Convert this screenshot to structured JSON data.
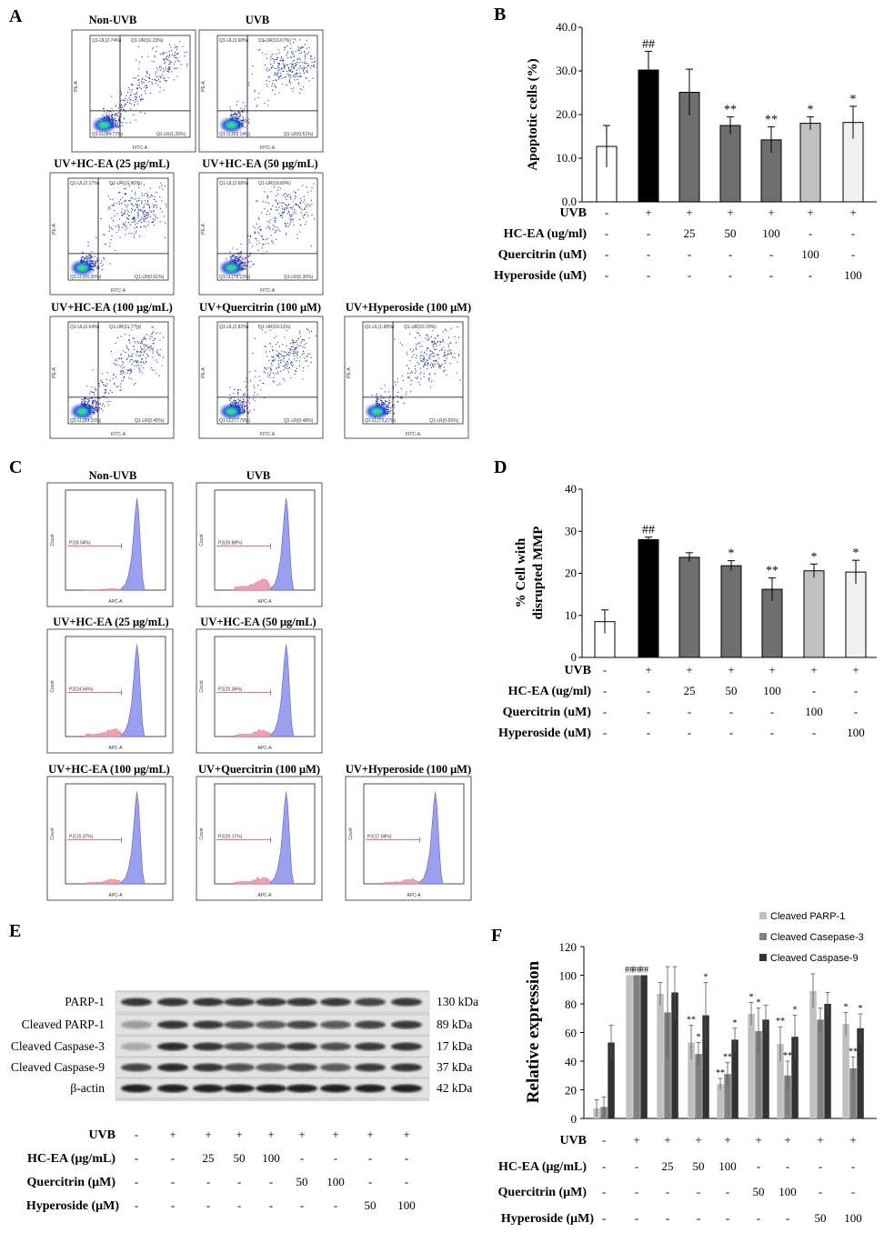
{
  "labels": {
    "A": "A",
    "B": "B",
    "C": "C",
    "D": "D",
    "E": "E",
    "F": "F"
  },
  "panelA": {
    "plots": [
      {
        "title": "Non-UVB",
        "ul": "Q1-UL(2.74%)",
        "ur": "Q1-UR(11.23%)",
        "ll": "Q1-LL(84.77%)",
        "lr": "Q1-LR(1.26%)"
      },
      {
        "title": "UVB",
        "ul": "Q1-UL(3.68%)",
        "ur": "Q1-UR(33.67%)",
        "ll": "Q1-LL(63.14%)",
        "lr": "Q1-LR(0.51%)"
      },
      {
        "title": "UV+HC-EA (25 μg/mL)",
        "ul": "Q1-UL(2.17%)",
        "ur": "Q1-UR(31.02%)",
        "ll": "Q1-LL(66.20%)",
        "lr": "Q1-LR(0.61%)"
      },
      {
        "title": "UV+HC-EA (50 μg/mL)",
        "ul": "Q1-UL(2.68%)",
        "ur": "Q1-UR(18.89%)",
        "ll": "Q1-LL(78.13%)",
        "lr": "Q1-LR(0.30%)"
      },
      {
        "title": "UV+HC-EA (100 μg/mL)",
        "ul": "Q1-UL(2.64%)",
        "ur": "Q1-UR(11.77%)",
        "ll": "Q1-LL(85.10%)",
        "lr": "Q1-LR(0.45%)"
      },
      {
        "title": "UV+Quercitrin (100 μM)",
        "ul": "Q1-UL(2.82%)",
        "ur": "Q1-UR(19.11%)",
        "ll": "Q1-LL(77.79%)",
        "lr": "Q1-LR(0.48%)"
      },
      {
        "title": "UV+Hyperoside (100 μM)",
        "ul": "Q1-UL(1.88%)",
        "ur": "Q1-UR(22.29%)",
        "ll": "Q1-LL(73.27%)",
        "lr": "Q1-LR(0.65%)"
      }
    ],
    "xaxis": "FITC-A",
    "yaxis": "PE-A"
  },
  "panelC": {
    "plots": [
      {
        "title": "Non-UVB",
        "gate": "P2(8.04%)"
      },
      {
        "title": "UVB",
        "gate": "P2(26.88%)"
      },
      {
        "title": "UV+HC-EA (25 μg/mL)",
        "gate": "P2(24.56%)"
      },
      {
        "title": "UV+HC-EA (50 μg/mL)",
        "gate": "P2(20.36%)"
      },
      {
        "title": "UV+HC-EA (100 μg/mL)",
        "gate": "P2(15.37%)"
      },
      {
        "title": "UV+Quercitrin (100 μM)",
        "gate": "P2(20.17%)"
      },
      {
        "title": "UV+Hyperoside (100 μM)",
        "gate": "P2(17.08%)"
      }
    ],
    "xaxis": "APC-A",
    "yaxis": "Count"
  },
  "chart_data": [
    {
      "id": "B",
      "type": "bar",
      "ylabel": "Apoptotic cells (%)",
      "ylim": [
        0,
        40
      ],
      "yticks": [
        "0.0",
        "10.0",
        "20.0",
        "30.0",
        "40.0"
      ],
      "values": [
        12.7,
        30.2,
        25.1,
        17.5,
        14.2,
        18.0,
        18.2
      ],
      "errors": [
        4.8,
        4.3,
        5.3,
        2.0,
        3.0,
        1.5,
        3.7
      ],
      "sig": [
        "",
        "##",
        "",
        "**",
        "**",
        "*",
        "*"
      ],
      "colors": [
        "#ffffff",
        "#000000",
        "#6e6e6e",
        "#6e6e6e",
        "#6e6e6e",
        "#c0c0c0",
        "#f0f0f0"
      ],
      "table": [
        {
          "label": "UVB",
          "values": [
            "-",
            "+",
            "+",
            "+",
            "+",
            "+",
            "+"
          ]
        },
        {
          "label": "HC-EA (ug/ml)",
          "values": [
            "-",
            "-",
            "25",
            "50",
            "100",
            "-",
            "-"
          ]
        },
        {
          "label": "Quercitrin (uM)",
          "values": [
            "-",
            "-",
            "-",
            "-",
            "-",
            "100",
            "-"
          ]
        },
        {
          "label": "Hyperoside (uM)",
          "values": [
            "-",
            "-",
            "-",
            "-",
            "-",
            "-",
            "100"
          ]
        }
      ]
    },
    {
      "id": "D",
      "type": "bar",
      "ylabel1": "% Cell with",
      "ylabel2": "disrupted MMP",
      "ylim": [
        0,
        40
      ],
      "yticks": [
        "0",
        "10",
        "20",
        "30",
        "40"
      ],
      "values": [
        8.5,
        28.0,
        23.8,
        21.8,
        16.2,
        20.6,
        20.3
      ],
      "errors": [
        2.8,
        0.6,
        1.1,
        1.2,
        2.7,
        1.6,
        2.8
      ],
      "sig": [
        "",
        "##",
        "",
        "*",
        "**",
        "*",
        "*"
      ],
      "colors": [
        "#ffffff",
        "#000000",
        "#6e6e6e",
        "#6e6e6e",
        "#6e6e6e",
        "#c0c0c0",
        "#f0f0f0"
      ],
      "table": [
        {
          "label": "UVB",
          "values": [
            "-",
            "+",
            "+",
            "+",
            "+",
            "+",
            "+"
          ]
        },
        {
          "label": "HC-EA (ug/ml)",
          "values": [
            "-",
            "-",
            "25",
            "50",
            "100",
            "-",
            "-"
          ]
        },
        {
          "label": "Quercitrin (uM)",
          "values": [
            "-",
            "-",
            "-",
            "-",
            "-",
            "100",
            "-"
          ]
        },
        {
          "label": "Hyperoside (uM)",
          "values": [
            "-",
            "-",
            "-",
            "-",
            "-",
            "-",
            "100"
          ]
        }
      ]
    },
    {
      "id": "F",
      "type": "bar",
      "ylabel": "Relative expression",
      "ylim": [
        0,
        120
      ],
      "yticks": [
        "0",
        "20",
        "40",
        "60",
        "80",
        "100",
        "120"
      ],
      "legend": [
        "Cleaved PARP-1",
        "Cleaved Casepase-3",
        "Cleaved Caspase-9"
      ],
      "colors": [
        "#c0c0c0",
        "#808080",
        "#333333"
      ],
      "series": [
        {
          "name": "Cleaved PARP-1",
          "values": [
            7,
            100,
            87,
            53,
            24,
            73,
            52,
            89,
            66
          ],
          "errors": [
            6,
            0,
            8,
            12,
            4,
            8,
            12,
            12,
            8
          ],
          "sig": [
            "",
            "##",
            "",
            "**",
            "**",
            "*",
            "**",
            "",
            "*"
          ]
        },
        {
          "name": "Cleaved Casepase-3",
          "values": [
            8,
            100,
            74,
            45,
            31,
            61,
            30,
            69,
            35
          ],
          "errors": [
            7,
            0,
            32,
            8,
            8,
            16,
            10,
            8,
            8
          ],
          "sig": [
            "",
            "##",
            "",
            "*",
            "**",
            "*",
            "**",
            "",
            "**"
          ]
        },
        {
          "name": "Cleaved Caspase-9",
          "values": [
            53,
            100,
            88,
            72,
            55,
            69,
            57,
            80,
            63
          ],
          "errors": [
            12,
            0,
            18,
            23,
            8,
            10,
            15,
            8,
            10
          ],
          "sig": [
            "",
            "##",
            "",
            "*",
            "*",
            "",
            "*",
            "",
            "*"
          ]
        }
      ],
      "table": [
        {
          "label": "UVB",
          "values": [
            "-",
            "+",
            "+",
            "+",
            "+",
            "+",
            "+",
            "+",
            "+"
          ]
        },
        {
          "label": "HC-EA (μg/mL)",
          "values": [
            "-",
            "-",
            "25",
            "50",
            "100",
            "-",
            "-",
            "-",
            "-"
          ]
        },
        {
          "label": "Quercitrin (μM)",
          "values": [
            "-",
            "-",
            "-",
            "-",
            "-",
            "50",
            "100",
            "-",
            "-"
          ]
        },
        {
          "label": "Hyperoside (μM)",
          "values": [
            "-",
            "-",
            "-",
            "-",
            "-",
            "-",
            "-",
            "50",
            "100"
          ]
        }
      ]
    }
  ],
  "panelE": {
    "bands": [
      {
        "label": "PARP-1",
        "kda": "130 kDa"
      },
      {
        "label": "Cleaved PARP-1",
        "kda": "89 kDa"
      },
      {
        "label": "Cleaved Caspase-3",
        "kda": "17 kDa"
      },
      {
        "label": "Cleaved Caspase-9",
        "kda": "37 kDa"
      },
      {
        "label": "β-actin",
        "kda": "42 kDa"
      }
    ],
    "table": [
      {
        "label": "UVB",
        "values": [
          "-",
          "+",
          "+",
          "+",
          "+",
          "+",
          "+",
          "+",
          "+"
        ]
      },
      {
        "label": "HC-EA (μg/mL)",
        "values": [
          "-",
          "-",
          "25",
          "50",
          "100",
          "-",
          "-",
          "-",
          "-"
        ]
      },
      {
        "label": "Quercitrin (μM)",
        "values": [
          "-",
          "-",
          "-",
          "-",
          "-",
          "50",
          "100",
          "-",
          "-"
        ]
      },
      {
        "label": "Hyperoside (μM)",
        "values": [
          "-",
          "-",
          "-",
          "-",
          "-",
          "-",
          "-",
          "50",
          "100"
        ]
      }
    ]
  }
}
